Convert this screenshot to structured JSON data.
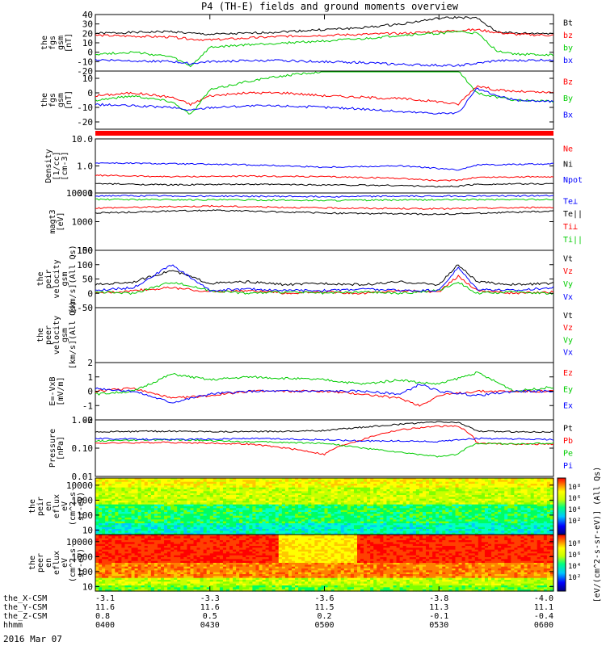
{
  "title": "P4 (TH-E) fields and ground moments overview",
  "colors": {
    "black": "#000000",
    "red": "#ff0000",
    "green": "#00cc00",
    "blue": "#0000ff"
  },
  "chart_data": [
    {
      "type": "line",
      "name": "the_fgs_gsm_total",
      "ylabel": [
        "the",
        "fgs",
        "gsm",
        "[nT]"
      ],
      "ylim": [
        -20,
        40
      ],
      "yticks": [
        "40",
        "30",
        "20",
        "10",
        "0",
        "-10",
        "-20"
      ],
      "ytick_values": [
        40,
        30,
        20,
        10,
        0,
        -10,
        -20
      ],
      "legend": [
        "Bt",
        "bz",
        "by",
        "bx"
      ],
      "series": [
        {
          "name": "Bt",
          "color": "black",
          "x": [
            0,
            10,
            20,
            25,
            30,
            40,
            50,
            60,
            70,
            80,
            90,
            95,
            100,
            105,
            110,
            120
          ],
          "y": [
            20,
            21,
            22,
            20,
            19,
            20,
            22,
            24,
            26,
            30,
            36,
            37,
            36,
            22,
            20,
            20
          ]
        },
        {
          "name": "bz",
          "color": "red",
          "x": [
            0,
            10,
            20,
            25,
            30,
            40,
            50,
            60,
            70,
            80,
            90,
            95,
            100,
            105,
            110,
            120
          ],
          "y": [
            18,
            17,
            16,
            14,
            13,
            15,
            17,
            18,
            19,
            20,
            22,
            23,
            24,
            21,
            19,
            18
          ]
        },
        {
          "name": "by",
          "color": "green",
          "x": [
            0,
            10,
            20,
            25,
            30,
            40,
            50,
            60,
            70,
            80,
            90,
            95,
            100,
            105,
            110,
            120
          ],
          "y": [
            -2,
            0,
            -5,
            -15,
            5,
            8,
            10,
            12,
            14,
            18,
            20,
            22,
            20,
            2,
            -2,
            -3
          ]
        },
        {
          "name": "bx",
          "color": "blue",
          "x": [
            0,
            10,
            20,
            25,
            30,
            40,
            50,
            60,
            70,
            80,
            90,
            95,
            100,
            105,
            110,
            120
          ],
          "y": [
            -8,
            -9,
            -10,
            -12,
            -10,
            -9,
            -9,
            -10,
            -11,
            -13,
            -14,
            -14,
            -12,
            -9,
            -9,
            -8
          ]
        }
      ]
    },
    {
      "type": "line",
      "name": "the_fgs_gsm_components",
      "ylabel": [
        "the",
        "fgs",
        "gsm",
        "[nT]"
      ],
      "ylim": [
        -25,
        15
      ],
      "yticks": [
        "10",
        "0",
        "-10",
        "-20"
      ],
      "ytick_values": [
        10,
        0,
        -10,
        -20
      ],
      "legend": [
        "Bz",
        "By",
        "Bx"
      ],
      "series": [
        {
          "name": "Bz",
          "color": "red",
          "x": [
            0,
            10,
            20,
            25,
            30,
            40,
            50,
            60,
            70,
            80,
            90,
            95,
            100,
            105,
            110,
            120
          ],
          "y": [
            -2,
            0,
            -3,
            -8,
            -2,
            0,
            0,
            -2,
            -3,
            -4,
            -6,
            -8,
            5,
            2,
            1,
            0
          ]
        },
        {
          "name": "By",
          "color": "green",
          "x": [
            0,
            10,
            20,
            25,
            30,
            40,
            50,
            60,
            70,
            80,
            90,
            95,
            100,
            105,
            110,
            120
          ],
          "y": [
            -5,
            -2,
            -6,
            -15,
            2,
            8,
            12,
            15,
            18,
            22,
            20,
            15,
            0,
            -3,
            -5,
            -6
          ]
        },
        {
          "name": "Bx",
          "color": "blue",
          "x": [
            0,
            10,
            20,
            25,
            30,
            40,
            50,
            60,
            70,
            80,
            90,
            95,
            100,
            105,
            110,
            120
          ],
          "y": [
            -8,
            -9,
            -10,
            -12,
            -10,
            -9,
            -9,
            -10,
            -11,
            -13,
            -14,
            -14,
            3,
            -2,
            -5,
            -6
          ]
        }
      ]
    },
    {
      "type": "line",
      "name": "density",
      "ylabel": [
        "Density",
        "[1/cc]",
        "[cm-3]"
      ],
      "yscale": "log",
      "ylim": [
        0.1,
        10
      ],
      "yticks": [
        "10.0",
        "1.0",
        "0.1"
      ],
      "ytick_values": [
        10,
        1,
        0.1
      ],
      "legend": [
        "Ne",
        "Ni",
        "Npot"
      ],
      "series": [
        {
          "name": "Ne",
          "color": "red",
          "x": [
            0,
            20,
            40,
            60,
            80,
            90,
            95,
            100,
            120
          ],
          "y": [
            0.45,
            0.4,
            0.42,
            0.4,
            0.35,
            0.28,
            0.3,
            0.38,
            0.4
          ]
        },
        {
          "name": "Ni",
          "color": "black",
          "x": [
            0,
            20,
            40,
            60,
            80,
            90,
            95,
            100,
            120
          ],
          "y": [
            0.22,
            0.2,
            0.21,
            0.2,
            0.19,
            0.17,
            0.18,
            0.21,
            0.22
          ]
        },
        {
          "name": "Npot",
          "color": "blue",
          "x": [
            0,
            20,
            40,
            60,
            80,
            90,
            95,
            100,
            120
          ],
          "y": [
            1.3,
            1.2,
            1.1,
            0.9,
            1.0,
            0.8,
            0.7,
            1.1,
            1.2
          ]
        }
      ]
    },
    {
      "type": "line",
      "name": "temperature",
      "ylabel": [
        "magt3",
        "[eV]"
      ],
      "yscale": "log",
      "ylim": [
        100,
        10000
      ],
      "yticks": [
        "10000",
        "1000",
        "100"
      ],
      "ytick_values": [
        10000,
        1000,
        100
      ],
      "legend": [
        "Te⊥",
        "Te||",
        "Ti⊥",
        "Ti||"
      ],
      "series": [
        {
          "name": "Te⊥",
          "color": "blue",
          "x": [
            0,
            30,
            60,
            90,
            120
          ],
          "y": [
            8000,
            7800,
            7500,
            7800,
            8000
          ]
        },
        {
          "name": "Te||",
          "color": "black",
          "x": [
            0,
            30,
            60,
            90,
            120
          ],
          "y": [
            2000,
            2500,
            2000,
            1800,
            2300
          ]
        },
        {
          "name": "Ti⊥",
          "color": "red",
          "x": [
            0,
            30,
            60,
            90,
            120
          ],
          "y": [
            3000,
            3500,
            3000,
            2800,
            3200
          ]
        },
        {
          "name": "Ti||",
          "color": "green",
          "x": [
            0,
            30,
            60,
            90,
            120
          ],
          "y": [
            6000,
            5800,
            5500,
            5800,
            6000
          ]
        }
      ]
    },
    {
      "type": "line",
      "name": "peir_velocity",
      "ylabel": [
        "the",
        "peir",
        "velocity",
        "gsm",
        "[km/s](All Qs)"
      ],
      "ylim": [
        -50,
        150
      ],
      "yticks": [
        "150",
        "100",
        "50",
        "0",
        "-50"
      ],
      "ytick_values": [
        150,
        100,
        50,
        0,
        -50
      ],
      "legend": [
        "Vt",
        "Vz",
        "Vy",
        "Vx"
      ],
      "series": [
        {
          "name": "Vt",
          "color": "black",
          "x": [
            0,
            10,
            20,
            30,
            40,
            50,
            60,
            70,
            80,
            90,
            95,
            100,
            110,
            120
          ],
          "y": [
            30,
            40,
            80,
            35,
            40,
            30,
            35,
            30,
            40,
            30,
            100,
            40,
            30,
            35
          ]
        },
        {
          "name": "Vz",
          "color": "red",
          "x": [
            0,
            10,
            20,
            30,
            40,
            50,
            60,
            70,
            80,
            90,
            95,
            100,
            110,
            120
          ],
          "y": [
            0,
            10,
            20,
            5,
            10,
            0,
            5,
            0,
            10,
            5,
            60,
            10,
            0,
            5
          ]
        },
        {
          "name": "Vy",
          "color": "green",
          "x": [
            0,
            10,
            20,
            30,
            40,
            50,
            60,
            70,
            80,
            90,
            95,
            100,
            110,
            120
          ],
          "y": [
            5,
            0,
            40,
            10,
            0,
            5,
            0,
            5,
            0,
            10,
            40,
            0,
            5,
            0
          ]
        },
        {
          "name": "Vx",
          "color": "blue",
          "x": [
            0,
            10,
            20,
            30,
            40,
            50,
            60,
            70,
            80,
            90,
            95,
            100,
            110,
            120
          ],
          "y": [
            10,
            20,
            100,
            10,
            15,
            10,
            10,
            15,
            10,
            10,
            90,
            15,
            10,
            20
          ]
        }
      ]
    },
    {
      "type": "line",
      "name": "peer_velocity",
      "ylabel": [
        "the",
        "peer",
        "velocity",
        "gsm",
        "[km/s](All Qs)"
      ],
      "legend": [
        "Vt",
        "Vz",
        "Vy",
        "Vx"
      ],
      "series": []
    },
    {
      "type": "line",
      "name": "efield",
      "ylabel": [
        "E=-VxB",
        "[mV/m]"
      ],
      "ylim": [
        -2,
        2
      ],
      "yticks": [
        "2",
        "1",
        "0",
        "-1",
        "-2"
      ],
      "ytick_values": [
        2,
        1,
        0,
        -1,
        -2
      ],
      "legend": [
        "Ez",
        "Ey",
        "Ex"
      ],
      "series": [
        {
          "name": "Ez",
          "color": "red",
          "x": [
            0,
            10,
            20,
            30,
            40,
            60,
            70,
            80,
            85,
            90,
            100,
            110,
            120
          ],
          "y": [
            0,
            0.2,
            -0.5,
            -0.3,
            0,
            0,
            -0.2,
            -0.5,
            -1.0,
            -0.3,
            0,
            0,
            0
          ]
        },
        {
          "name": "Ey",
          "color": "green",
          "x": [
            0,
            10,
            20,
            30,
            40,
            60,
            70,
            80,
            85,
            90,
            100,
            110,
            120
          ],
          "y": [
            -0.2,
            0,
            1.2,
            0.8,
            1.0,
            0.8,
            0.5,
            0.8,
            0.6,
            0.5,
            1.3,
            0,
            0.3
          ]
        },
        {
          "name": "Ex",
          "color": "blue",
          "x": [
            0,
            10,
            20,
            30,
            40,
            60,
            70,
            80,
            85,
            90,
            100,
            110,
            120
          ],
          "y": [
            0.2,
            0,
            -0.8,
            -0.2,
            0,
            0,
            0,
            -0.2,
            0.5,
            0,
            -0.3,
            0,
            0
          ]
        }
      ]
    },
    {
      "type": "line",
      "name": "pressure",
      "ylabel": [
        "Pressure",
        "[nPa]"
      ],
      "yscale": "log",
      "ylim": [
        0.01,
        1
      ],
      "yticks": [
        "1.00",
        "0.10",
        "0.01"
      ],
      "ytick_values": [
        1,
        0.1,
        0.01
      ],
      "legend": [
        "Pt",
        "Pb",
        "Pe",
        "Pi"
      ],
      "series": [
        {
          "name": "Pt",
          "color": "black",
          "x": [
            0,
            20,
            40,
            60,
            70,
            80,
            90,
            95,
            100,
            110,
            120
          ],
          "y": [
            0.38,
            0.4,
            0.38,
            0.42,
            0.55,
            0.7,
            0.85,
            0.8,
            0.4,
            0.38,
            0.38
          ]
        },
        {
          "name": "Pb",
          "color": "red",
          "x": [
            0,
            20,
            40,
            60,
            70,
            80,
            90,
            95,
            100,
            110,
            120
          ],
          "y": [
            0.15,
            0.16,
            0.14,
            0.06,
            0.2,
            0.45,
            0.6,
            0.6,
            0.15,
            0.14,
            0.14
          ]
        },
        {
          "name": "Pe",
          "color": "green",
          "x": [
            0,
            20,
            40,
            60,
            70,
            80,
            90,
            95,
            100,
            110,
            120
          ],
          "y": [
            0.18,
            0.2,
            0.17,
            0.15,
            0.1,
            0.07,
            0.05,
            0.06,
            0.15,
            0.14,
            0.15
          ]
        },
        {
          "name": "Pi",
          "color": "blue",
          "x": [
            0,
            20,
            40,
            60,
            70,
            80,
            90,
            95,
            100,
            110,
            120
          ],
          "y": [
            0.22,
            0.2,
            0.22,
            0.2,
            0.18,
            0.18,
            0.17,
            0.2,
            0.22,
            0.21,
            0.2
          ]
        }
      ]
    },
    {
      "type": "heatmap",
      "name": "peir_energy_flux",
      "ylabel": [
        "the",
        "peir",
        "en",
        "eflux",
        "eV",
        "(cm^2-s-",
        "sr-eV)"
      ],
      "yscale": "log",
      "ylim": [
        5,
        30000
      ],
      "yticks": [
        "10000",
        "1000",
        "100",
        "10"
      ],
      "ytick_values": [
        10000,
        1000,
        100,
        10
      ]
    },
    {
      "type": "heatmap",
      "name": "peer_energy_flux",
      "ylabel": [
        "the",
        "peer",
        "en",
        "eflux",
        "eV",
        "(cm^2-s-",
        "sr-eV)"
      ],
      "yscale": "log",
      "ylim": [
        5,
        30000
      ],
      "yticks": [
        "10000",
        "1000",
        "100",
        "10"
      ],
      "ytick_values": [
        10000,
        1000,
        100,
        10
      ]
    }
  ],
  "colorbar": {
    "label": "[eV/(cm^2-s-sr-eV)] (All Qs)",
    "upper_ticks": [
      "10⁸",
      "10⁶",
      "10⁴",
      "10²"
    ],
    "lower_ticks": [
      "10⁸",
      "10⁶",
      "10⁴",
      "10²"
    ]
  },
  "x_axis": {
    "xlim": [
      0,
      120
    ],
    "tick_positions": [
      0,
      30,
      60,
      90,
      120
    ],
    "rows": [
      {
        "label": "the_X-CSM",
        "values": [
          "-3.1",
          "-3.3",
          "-3.6",
          "-3.8",
          "-4.0"
        ]
      },
      {
        "label": "the_Y-CSM",
        "values": [
          "11.6",
          "11.6",
          "11.5",
          "11.3",
          "11.1"
        ]
      },
      {
        "label": "the_Z-CSM",
        "values": [
          "0.8",
          "0.5",
          "0.2",
          "-0.1",
          "-0.4"
        ]
      },
      {
        "label": "hhmm",
        "values": [
          "0400",
          "0430",
          "0500",
          "0530",
          "0600"
        ]
      }
    ],
    "date": "2016 Mar 07"
  }
}
